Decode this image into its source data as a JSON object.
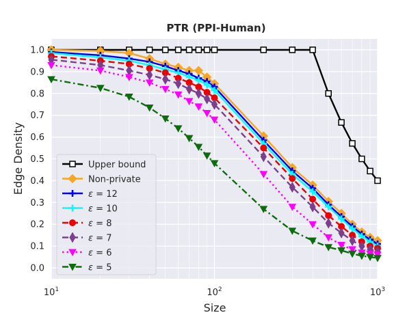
{
  "chart_data": {
    "type": "line",
    "title": "PTR (PPI-Human)",
    "xlabel": "Size",
    "ylabel": "Edge Density",
    "xscale": "log",
    "xlim": [
      10,
      1000
    ],
    "ylim": [
      -0.05,
      1.05
    ],
    "x_ticks": [
      {
        "value": 10,
        "base": "10",
        "exp": "1"
      },
      {
        "value": 100,
        "base": "10",
        "exp": "2"
      },
      {
        "value": 1000,
        "base": "10",
        "exp": "3"
      }
    ],
    "y_ticks": [
      {
        "value": 0.0,
        "label": "0.0"
      },
      {
        "value": 0.1,
        "label": "0.1"
      },
      {
        "value": 0.2,
        "label": "0.2"
      },
      {
        "value": 0.3,
        "label": "0.3"
      },
      {
        "value": 0.4,
        "label": "0.4"
      },
      {
        "value": 0.5,
        "label": "0.5"
      },
      {
        "value": 0.6,
        "label": "0.6"
      },
      {
        "value": 0.7,
        "label": "0.7"
      },
      {
        "value": 0.8,
        "label": "0.8"
      },
      {
        "value": 0.9,
        "label": "0.9"
      },
      {
        "value": 1.0,
        "label": "1.0"
      }
    ],
    "grid": true,
    "legend_position": "lower-left",
    "series": [
      {
        "name": "Upper bound",
        "label_prefix": "",
        "label_value": "Upper bound",
        "color": "#000000",
        "dash": "solid",
        "marker": "square",
        "x": [
          10,
          20,
          30,
          40,
          50,
          60,
          70,
          80,
          90,
          100,
          200,
          300,
          400,
          500,
          600,
          700,
          800,
          900,
          1000
        ],
        "y": [
          1.0,
          1.0,
          1.0,
          1.0,
          1.0,
          1.0,
          1.0,
          1.0,
          1.0,
          1.0,
          1.0,
          1.0,
          1.0,
          0.8,
          0.667,
          0.571,
          0.5,
          0.444,
          0.4
        ]
      },
      {
        "name": "Non-private",
        "label_prefix": "",
        "label_value": "Non-private",
        "color": "#f5a623",
        "dash": "solid",
        "marker": "diamond",
        "x": [
          10,
          20,
          30,
          40,
          50,
          60,
          70,
          80,
          90,
          100,
          200,
          300,
          400,
          500,
          600,
          700,
          800,
          900,
          1000
        ],
        "y": [
          1.0,
          0.995,
          0.985,
          0.96,
          0.935,
          0.92,
          0.905,
          0.905,
          0.875,
          0.845,
          0.605,
          0.46,
          0.38,
          0.305,
          0.25,
          0.2,
          0.165,
          0.14,
          0.125
        ]
      },
      {
        "name": "eps12",
        "label_prefix": "ε = ",
        "label_value": "12",
        "color": "#0000ee",
        "dash": "solid",
        "marker": "plus",
        "x": [
          10,
          20,
          30,
          40,
          50,
          60,
          70,
          80,
          90,
          100,
          200,
          300,
          400,
          500,
          600,
          700,
          800,
          900,
          1000
        ],
        "y": [
          0.99,
          0.975,
          0.96,
          0.945,
          0.925,
          0.905,
          0.89,
          0.87,
          0.855,
          0.83,
          0.585,
          0.445,
          0.365,
          0.29,
          0.235,
          0.19,
          0.155,
          0.13,
          0.11
        ]
      },
      {
        "name": "eps10",
        "label_prefix": "ε = ",
        "label_value": "10",
        "color": "#00ffff",
        "dash": "solid",
        "marker": "plus",
        "x": [
          10,
          20,
          30,
          40,
          50,
          60,
          70,
          80,
          90,
          100,
          200,
          300,
          400,
          500,
          600,
          700,
          800,
          900,
          1000
        ],
        "y": [
          0.985,
          0.965,
          0.95,
          0.93,
          0.91,
          0.895,
          0.875,
          0.86,
          0.84,
          0.815,
          0.57,
          0.43,
          0.35,
          0.28,
          0.225,
          0.18,
          0.145,
          0.12,
          0.1
        ]
      },
      {
        "name": "eps8",
        "label_prefix": "ε = ",
        "label_value": "8",
        "color": "#ee0000",
        "dash": "dashed",
        "marker": "circle",
        "x": [
          10,
          20,
          30,
          40,
          50,
          60,
          70,
          80,
          90,
          100,
          200,
          300,
          400,
          500,
          600,
          700,
          800,
          900,
          1000
        ],
        "y": [
          0.97,
          0.95,
          0.935,
          0.915,
          0.895,
          0.87,
          0.85,
          0.83,
          0.805,
          0.78,
          0.55,
          0.41,
          0.315,
          0.24,
          0.19,
          0.15,
          0.12,
          0.1,
          0.09
        ]
      },
      {
        "name": "eps7",
        "label_prefix": "ε = ",
        "label_value": "7",
        "color": "#7b3f8c",
        "dash": "dashed",
        "marker": "diamond-thin",
        "x": [
          10,
          20,
          30,
          40,
          50,
          60,
          70,
          80,
          90,
          100,
          200,
          300,
          400,
          500,
          600,
          700,
          800,
          900,
          1000
        ],
        "y": [
          0.955,
          0.93,
          0.905,
          0.885,
          0.865,
          0.845,
          0.82,
          0.8,
          0.775,
          0.75,
          0.51,
          0.37,
          0.28,
          0.205,
          0.16,
          0.125,
          0.1,
          0.085,
          0.075
        ]
      },
      {
        "name": "eps6",
        "label_prefix": "ε = ",
        "label_value": "6",
        "color": "#ff00ff",
        "dash": "dotted",
        "marker": "tri-down",
        "x": [
          10,
          20,
          30,
          40,
          50,
          60,
          70,
          80,
          90,
          100,
          200,
          300,
          400,
          500,
          600,
          700,
          800,
          900,
          1000
        ],
        "y": [
          0.93,
          0.905,
          0.875,
          0.85,
          0.82,
          0.795,
          0.765,
          0.74,
          0.71,
          0.68,
          0.43,
          0.28,
          0.2,
          0.14,
          0.105,
          0.085,
          0.07,
          0.065,
          0.06
        ]
      },
      {
        "name": "eps5",
        "label_prefix": "ε = ",
        "label_value": "5",
        "color": "#0e6b0e",
        "dash": "dashdot",
        "marker": "tri-down",
        "x": [
          10,
          20,
          30,
          40,
          50,
          60,
          70,
          80,
          90,
          100,
          200,
          300,
          400,
          500,
          600,
          700,
          800,
          900,
          1000
        ],
        "y": [
          0.865,
          0.825,
          0.785,
          0.735,
          0.685,
          0.64,
          0.595,
          0.555,
          0.515,
          0.48,
          0.27,
          0.17,
          0.125,
          0.095,
          0.08,
          0.065,
          0.055,
          0.05,
          0.045
        ]
      }
    ]
  }
}
